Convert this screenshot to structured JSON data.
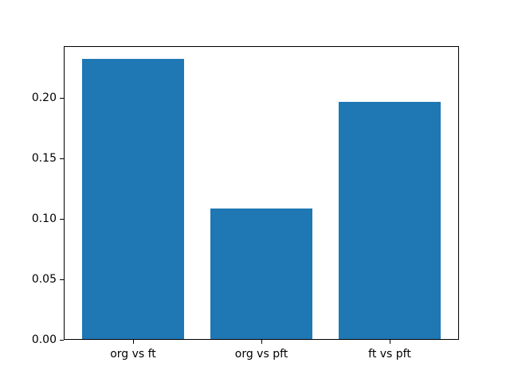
{
  "chart_data": {
    "type": "bar",
    "title": "",
    "xlabel": "",
    "ylabel": "",
    "categories": [
      "org vs ft",
      "org vs pft",
      "ft vs pft"
    ],
    "values": [
      0.232,
      0.108,
      0.196
    ],
    "bar_color": "#1f77b4",
    "spine_color": "#000000",
    "background_color": "#ffffff",
    "ylim": [
      0,
      0.243
    ],
    "xlim": [
      -0.54,
      2.54
    ],
    "bar_width": 0.8,
    "yticks": [
      0.0,
      0.05,
      0.1,
      0.15,
      0.2
    ],
    "ytick_labels": [
      "0.00",
      "0.05",
      "0.10",
      "0.15",
      "0.20"
    ],
    "grid": false,
    "legend": null
  }
}
